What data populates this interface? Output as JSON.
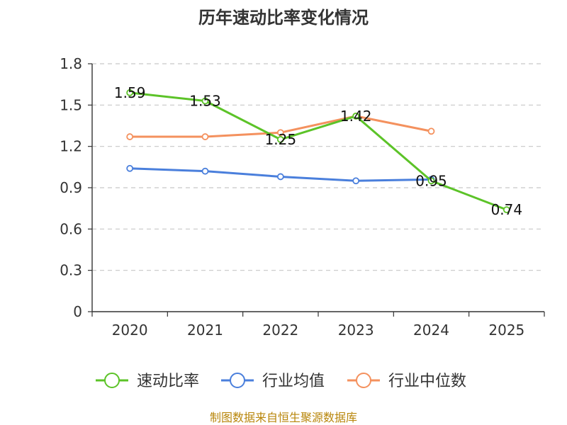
{
  "chart_data": {
    "type": "line",
    "title": "历年速动比率变化情况",
    "categories": [
      "2020",
      "2021",
      "2022",
      "2023",
      "2024",
      "2025"
    ],
    "y_ticks": [
      "0",
      "0.3",
      "0.6",
      "0.9",
      "1.2",
      "1.5",
      "1.8"
    ],
    "ylim": [
      0,
      1.8
    ],
    "grid": true,
    "legend_position": "bottom",
    "series": [
      {
        "name": "速动比率",
        "color": "#5cc328",
        "values": [
          1.59,
          1.53,
          1.25,
          1.42,
          0.95,
          0.74
        ],
        "labels": [
          "1.59",
          "1.53",
          "1.25",
          "1.42",
          "0.95",
          "0.74"
        ]
      },
      {
        "name": "行业均值",
        "color": "#4a7fdc",
        "values": [
          1.04,
          1.02,
          0.98,
          0.95,
          0.96,
          null
        ]
      },
      {
        "name": "行业中位数",
        "color": "#f4915e",
        "values": [
          1.27,
          1.27,
          1.3,
          1.42,
          1.31,
          null
        ]
      }
    ],
    "source": "制图数据来自恒生聚源数据库"
  }
}
